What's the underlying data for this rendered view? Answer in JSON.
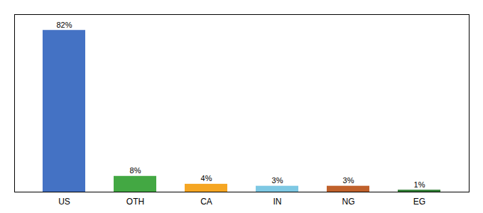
{
  "chart_data": {
    "type": "bar",
    "categories": [
      "US",
      "OTH",
      "CA",
      "IN",
      "NG",
      "EG"
    ],
    "values": [
      82,
      8,
      4,
      3,
      3,
      1
    ],
    "value_labels": [
      "82%",
      "8%",
      "4%",
      "3%",
      "3%",
      "1%"
    ],
    "colors": [
      "#4472c4",
      "#43a843",
      "#f5a623",
      "#7ec8e3",
      "#c0612b",
      "#2e7d32"
    ],
    "ylim": [
      0,
      90
    ],
    "grid": false,
    "data_labels": true,
    "tick_labels": "x"
  }
}
